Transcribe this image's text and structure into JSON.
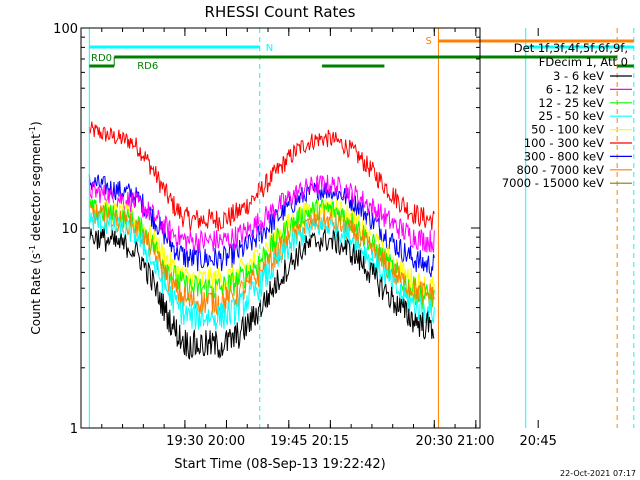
{
  "chart_data": {
    "type": "line",
    "title": "RHESSI Count Rates",
    "xlabel": "Start Time (08-Sep-13 19:22:42)",
    "ylabel_main": "Count Rate (s",
    "ylabel_sup1": "-1",
    "ylabel_mid": " detector segment",
    "ylabel_sup2": "-1",
    "ylabel_end": ")",
    "yscale": "log",
    "ylim": [
      1,
      100
    ],
    "xlim_minutes": [
      19.25,
      21.01
    ],
    "x_ticks": [
      {
        "label": "19:30",
        "t": 19.5
      },
      {
        "label": "19:45",
        "t": 19.75
      },
      {
        "label": "20:00",
        "t": 20.0
      },
      {
        "label": "20:15",
        "t": 20.25
      },
      {
        "label": "20:30",
        "t": 20.5
      },
      {
        "label": "20:45",
        "t": 20.75
      },
      {
        "label": "21:00",
        "t": 21.0
      }
    ],
    "y_ticks": [
      {
        "label": "1",
        "v": 1
      },
      {
        "label": "10",
        "v": 10
      },
      {
        "label": "100",
        "v": 100
      }
    ],
    "legend": {
      "placement": "right",
      "header1": "Det 1f,3f,4f,5f,6f,9f,",
      "header2": "FDecim 1, Att 0"
    },
    "series": [
      {
        "name": "3 - 6 keV",
        "color": "#000000",
        "start": 9.2,
        "dip": 2.6,
        "peak": 8.7,
        "end": 3.2
      },
      {
        "name": "6 - 12 keV",
        "color": "#ff00ff",
        "start": 15.5,
        "dip": 8.6,
        "peak": 16.5,
        "end": 8.6
      },
      {
        "name": "12 - 25 keV",
        "color": "#00ff00",
        "start": 12.5,
        "dip": 5.0,
        "peak": 12.5,
        "end": 4.5
      },
      {
        "name": "25 - 50 keV",
        "color": "#00ffff",
        "start": 11.0,
        "dip": 3.6,
        "peak": 10.2,
        "end": 3.8
      },
      {
        "name": "50 - 100 keV",
        "color": "#ffff00",
        "start": 13.0,
        "dip": 5.5,
        "peak": 12.8,
        "end": 5.0
      },
      {
        "name": "100 - 300 keV",
        "color": "#ff0000",
        "start": 31.0,
        "dip": 11.0,
        "peak": 28.0,
        "end": 11.0
      },
      {
        "name": "300 - 800 keV",
        "color": "#0000ff",
        "start": 17.0,
        "dip": 7.0,
        "peak": 15.5,
        "end": 6.5
      },
      {
        "name": "800 - 7000 keV",
        "color": "#ff8000",
        "start": 12.0,
        "dip": 4.3,
        "peak": 10.8,
        "end": 4.6
      },
      {
        "name": "7000 - 15000 keV",
        "color": "#808000",
        "start": null,
        "dip": null,
        "peak": null,
        "end": null
      }
    ],
    "annotations": {
      "N_label": "N",
      "S_label": "S",
      "RD0_label": "RD0",
      "RD6_label": "RD6",
      "vlines": [
        {
          "t": 19.27,
          "color": "#00ffff",
          "dashed": false
        },
        {
          "t": 19.68,
          "color": "#00ffff",
          "dashed": true
        },
        {
          "t": 20.51,
          "color": "#ff8000",
          "dashed": false
        },
        {
          "t": 20.72,
          "color": "#00ffff",
          "dashed": false
        },
        {
          "t": 20.94,
          "color": "#ff8000",
          "dashed": true
        },
        {
          "t": 20.98,
          "color": "#00ffff",
          "dashed": true
        }
      ]
    },
    "grid": false
  },
  "footer": {
    "date": "22-Oct-2021 07:17"
  }
}
